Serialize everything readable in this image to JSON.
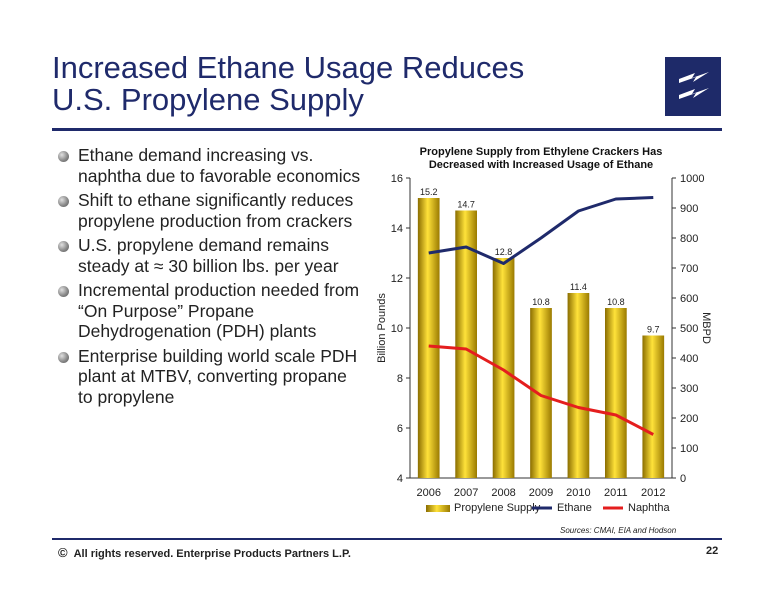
{
  "slide": {
    "title_line1": "Increased Ethane Usage Reduces",
    "title_line2": "U.S. Propylene Supply",
    "bullets": [
      "Ethane demand increasing vs. naphtha due to favorable economics",
      "Shift to ethane significantly reduces propylene production from crackers",
      "U.S. propylene demand remains steady at ≈ 30 billion lbs. per year",
      "Incremental production needed from “On Purpose” Propane Dehydrogenation (PDH) plants",
      "Enterprise building world scale PDH plant at MTBV, converting propane to propylene"
    ],
    "source": "Sources:  CMAI, EIA and Hodson",
    "footer_symbol": "©",
    "footer_text": "All rights reserved. Enterprise Products Partners L.P.",
    "page_number": "22",
    "colors": {
      "brand_navy": "#1f2a6b",
      "bar": "#d8b000",
      "ethane": "#1f2a6b",
      "naphtha": "#e41e1e"
    },
    "logo_icon": "lightning-bolts-logo"
  },
  "chart_data": {
    "type": "bar",
    "title_line1": "Propylene Supply from Ethylene Crackers Has",
    "title_line2": "Decreased with Increased Usage of Ethane",
    "categories": [
      "2006",
      "2007",
      "2008",
      "2009",
      "2010",
      "2011",
      "2012"
    ],
    "ylabel": "Billion Pounds",
    "y2label": "MBPD",
    "ylim": [
      4,
      16
    ],
    "y2lim": [
      0,
      1000
    ],
    "yticks": [
      4,
      6,
      8,
      10,
      12,
      14,
      16
    ],
    "y2ticks": [
      0,
      100,
      200,
      300,
      400,
      500,
      600,
      700,
      800,
      900,
      1000
    ],
    "bar_series": {
      "name": "Propylene Supply",
      "values": [
        15.2,
        14.7,
        12.8,
        10.8,
        11.4,
        10.8,
        9.7
      ],
      "labels": [
        "15.2",
        "14.7",
        "12.8",
        "10.8",
        "11.4",
        "10.8",
        "9.7"
      ]
    },
    "line_series": [
      {
        "name": "Ethane",
        "values": [
          750,
          770,
          715,
          800,
          890,
          930,
          935
        ]
      },
      {
        "name": "Naphtha",
        "values": [
          440,
          430,
          360,
          275,
          235,
          210,
          145
        ]
      }
    ],
    "legend_position": "bottom",
    "grid": false
  }
}
